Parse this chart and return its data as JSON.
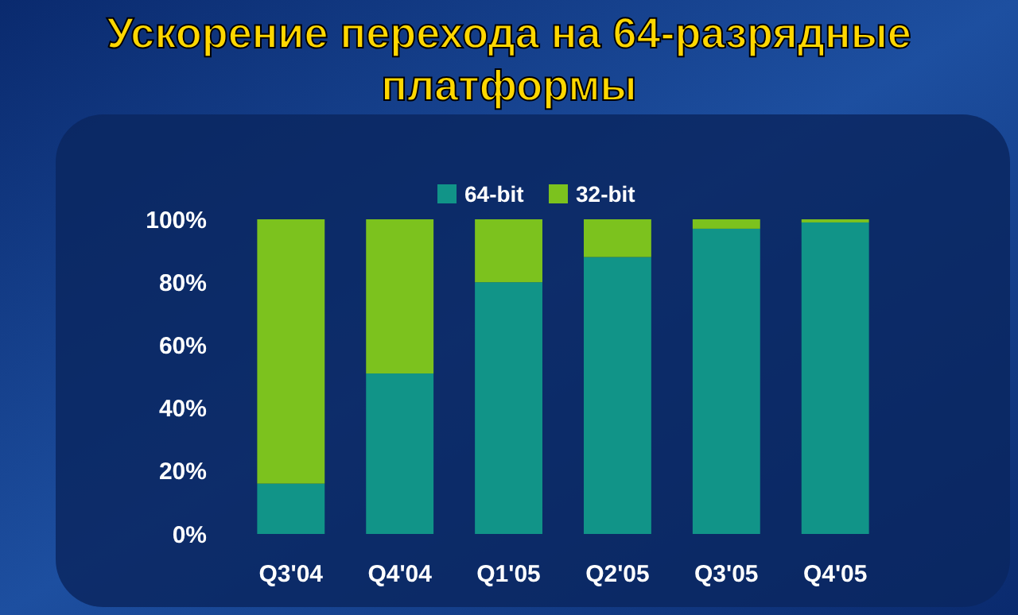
{
  "chart_data": {
    "type": "bar",
    "title": "Ускорение перехода на 64-разрядные платформы",
    "stacked": true,
    "categories": [
      "Q3'04",
      "Q4'04",
      "Q1'05",
      "Q2'05",
      "Q3'05",
      "Q4'05"
    ],
    "series": [
      {
        "name": "64-bit",
        "color": "#119488",
        "values": [
          16,
          51,
          80,
          88,
          97,
          99
        ]
      },
      {
        "name": "32-bit",
        "color": "#7cc21e",
        "values": [
          84,
          49,
          20,
          12,
          3,
          1
        ]
      }
    ],
    "ylim": [
      0,
      100
    ],
    "yticks": [
      {
        "value": 0,
        "label": "0%"
      },
      {
        "value": 20,
        "label": "20%"
      },
      {
        "value": 40,
        "label": "40%"
      },
      {
        "value": 60,
        "label": "60%"
      },
      {
        "value": 80,
        "label": "80%"
      },
      {
        "value": 100,
        "label": "100%"
      }
    ],
    "grid": false,
    "legend": "top"
  }
}
